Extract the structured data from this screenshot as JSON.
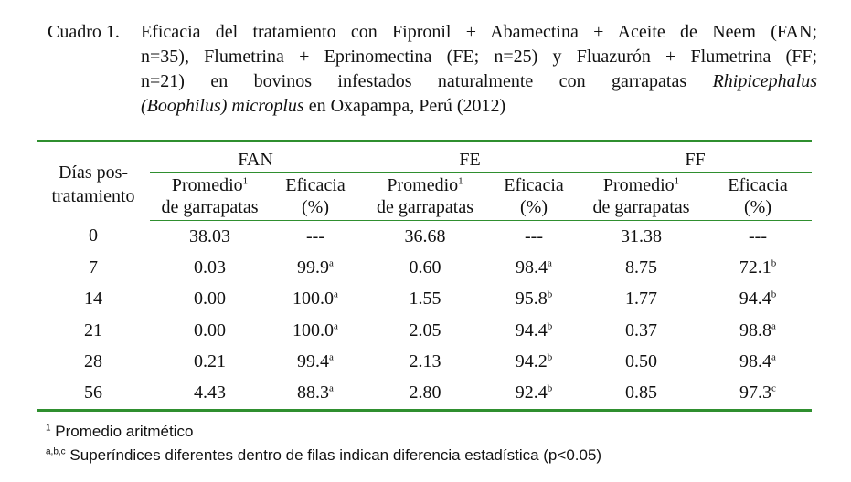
{
  "caption": {
    "label": "Cuadro 1.",
    "line1": "Eficacia del tratamiento con Fipronil + Abamectina + Aceite de Neem (FAN;",
    "line2": "n=35), Flumetrina + Eprinomectina (FE; n=25) y Fluazurón + Flumetrina (FF;",
    "line3_a": "n=21) en bovinos infestados naturalmente con garrapatas ",
    "line3_b": "Rhipicephalus",
    "line4_a": "(Boophilus) microplus",
    "line4_b": " en Oxapampa, Perú (2012)"
  },
  "table": {
    "row_header": [
      "Días pos-",
      "tratamiento"
    ],
    "groups": [
      "FAN",
      "FE",
      "FF"
    ],
    "sub_promedio": [
      "Promedio",
      "de garrapatas"
    ],
    "sub_promedio_sup": "1",
    "sub_eficacia": [
      "Eficacia",
      "(%)"
    ],
    "rows": [
      {
        "dia": "0",
        "fan_p": "38.03",
        "fan_e": "---",
        "fan_s": "",
        "fe_p": "36.68",
        "fe_e": "---",
        "fe_s": "",
        "ff_p": "31.38",
        "ff_e": "---",
        "ff_s": ""
      },
      {
        "dia": "7",
        "fan_p": "0.03",
        "fan_e": "99.9",
        "fan_s": "a",
        "fe_p": "0.60",
        "fe_e": "98.4",
        "fe_s": "a",
        "ff_p": "8.75",
        "ff_e": "72.1",
        "ff_s": "b"
      },
      {
        "dia": "14",
        "fan_p": "0.00",
        "fan_e": "100.0",
        "fan_s": "a",
        "fe_p": "1.55",
        "fe_e": "95.8",
        "fe_s": "b",
        "ff_p": "1.77",
        "ff_e": "94.4",
        "ff_s": "b"
      },
      {
        "dia": "21",
        "fan_p": "0.00",
        "fan_e": "100.0",
        "fan_s": "a",
        "fe_p": "2.05",
        "fe_e": "94.4",
        "fe_s": "b",
        "ff_p": "0.37",
        "ff_e": "98.8",
        "ff_s": "a"
      },
      {
        "dia": "28",
        "fan_p": "0.21",
        "fan_e": "99.4",
        "fan_s": "a",
        "fe_p": "2.13",
        "fe_e": "94.2",
        "fe_s": "b",
        "ff_p": "0.50",
        "ff_e": "98.4",
        "ff_s": "a"
      },
      {
        "dia": "56",
        "fan_p": "4.43",
        "fan_e": "88.3",
        "fan_s": "a",
        "fe_p": "2.80",
        "fe_e": "92.4",
        "fe_s": "b",
        "ff_p": "0.85",
        "ff_e": "97.3",
        "ff_s": "c"
      }
    ]
  },
  "footnotes": {
    "f1_sup": "1",
    "f1_text": " Promedio aritmético",
    "f2_sup": "a,b,c",
    "f2_text": " Superíndices diferentes dentro de filas indican diferencia estadística (p<0.05)"
  }
}
